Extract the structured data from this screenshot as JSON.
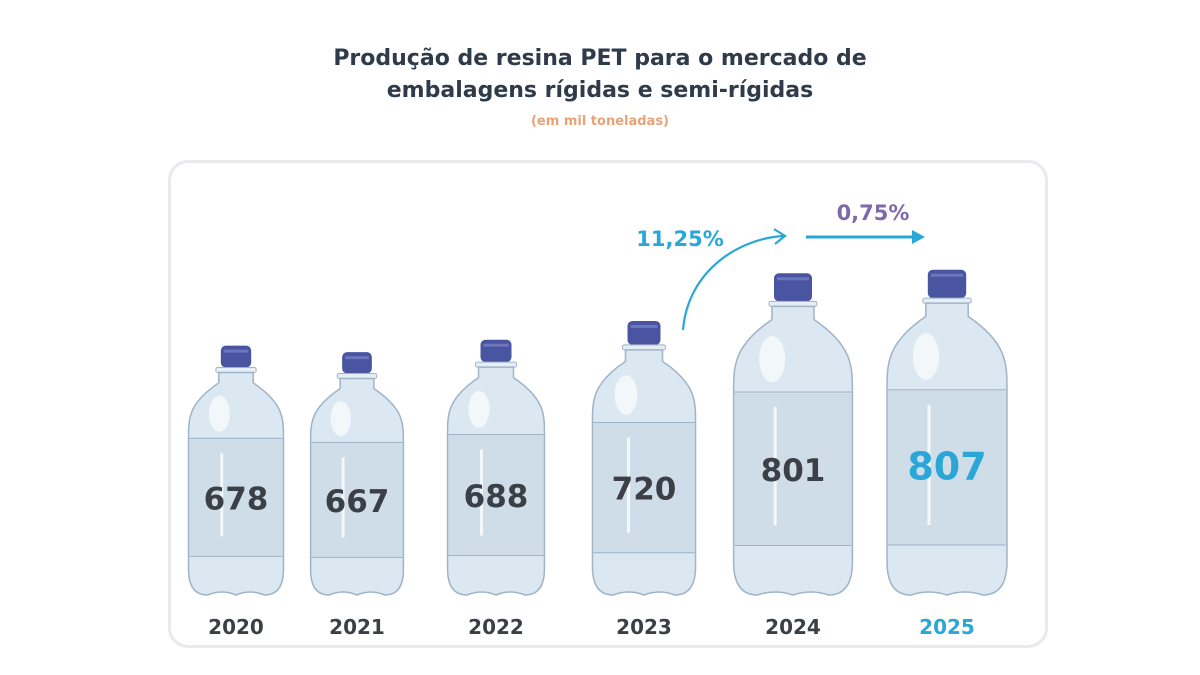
{
  "chart_data": {
    "type": "bar",
    "title": "Produção de resina PET para o mercado de embalagens rígidas e semi-rígidas",
    "title_lines": [
      "Produção de resina PET para o mercado de",
      "embalagens rígidas e semi-rígidas"
    ],
    "subtitle": "(em mil toneladas)",
    "categories": [
      "2020",
      "2021",
      "2022",
      "2023",
      "2024",
      "2025"
    ],
    "values": [
      678,
      667,
      688,
      720,
      801,
      807
    ],
    "value_labels": [
      "678",
      "667",
      "688",
      "720",
      "801",
      "807"
    ],
    "highlight_index": 5,
    "annotations": [
      {
        "text": "11,25%",
        "from": "2023",
        "to": "2024",
        "color": "#2aa7d6"
      },
      {
        "text": "0,75%",
        "from": "2024",
        "to": "2025",
        "color": "#7e6aa8"
      }
    ],
    "colors": {
      "title": "#2f3b4a",
      "subtitle": "#e8a277",
      "label": "#3b3f46",
      "highlight": "#2aa7d6",
      "cap": "#4a55a2",
      "bottle": "#dbe7f1",
      "bottle_outline": "#9fb4c7"
    },
    "xlabel": "",
    "ylabel": ""
  }
}
